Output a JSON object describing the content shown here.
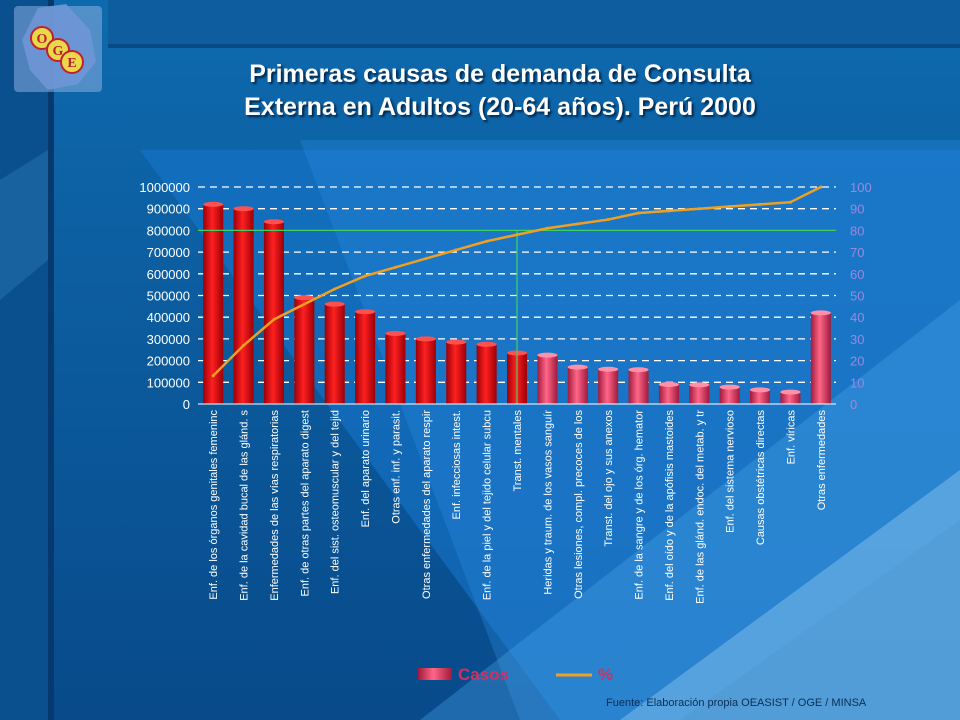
{
  "title_line1": "Primeras causas de demanda de Consulta",
  "title_line2": "Externa en Adultos (20-64 años). Perú 2000",
  "logo_letters": [
    "O",
    "G",
    "E"
  ],
  "source": "Fuente: Elaboración propia OEASIST / OGE / MINSA",
  "colors": {
    "bar_red": "#e00010",
    "bar_pink": "#e03060",
    "line": "#f0a020",
    "right_axis": "#9a88e0",
    "ref_line": "#40d060"
  },
  "chart_data": {
    "type": "bar",
    "categories": [
      "Enf. de los órganos genitales femeninc",
      "Enf. de la cavidad bucal de las glánd. s",
      "Enfermedades de las vías respiratorias",
      "Enf. de otras partes del aparato digest",
      "Enf. del sist. osteomuscular y del tejid",
      "Enf. del aparato urinario",
      "Otras enf. inf. y parasit.",
      "Otras enfermedades del aparato respir",
      "Enf. infecciosas intest.",
      "Enf. de la piel y del tejido celular subcu",
      "Transt. mentales",
      "Heridas y traum. de los vasos sanguír",
      "Otras lesiones, compl. precoces de los",
      "Transt. del ojo y sus anexos",
      "Enf. de la sangre y de los órg. hemator",
      "Enf. del oído y de la apófisis mastoides",
      "Enf. de las glánd. endoc. del metab. y tr",
      "Enf. del sistema nervioso",
      "Causas obstétricas directas",
      "Enf. víricas",
      "Otras enfermedades"
    ],
    "series": [
      {
        "name": "Casos",
        "type": "bar",
        "values": [
          920000,
          900000,
          840000,
          490000,
          460000,
          425000,
          325000,
          300000,
          285000,
          275000,
          235000,
          225000,
          170000,
          160000,
          158000,
          90000,
          88000,
          78000,
          65000,
          55000,
          420000
        ]
      },
      {
        "name": "%",
        "type": "line",
        "axis": "right",
        "values": [
          13,
          27,
          39,
          46,
          53,
          59,
          63,
          67,
          71,
          75,
          78,
          81,
          83,
          85,
          88,
          89,
          90,
          91,
          92,
          93,
          100
        ]
      }
    ],
    "y_left": {
      "min": 0,
      "max": 1000000,
      "ticks": [
        "0",
        "100000",
        "200000",
        "300000",
        "400000",
        "500000",
        "600000",
        "700000",
        "800000",
        "900000",
        "1000000"
      ]
    },
    "y_right": {
      "min": 0,
      "max": 100,
      "ticks": [
        "0",
        "10",
        "20",
        "30",
        "40",
        "50",
        "60",
        "70",
        "80",
        "90",
        "100"
      ]
    },
    "reference": {
      "y_right": 80,
      "category_index": 10
    },
    "legend": {
      "items": [
        "Casos",
        "%"
      ],
      "position": "bottom"
    }
  }
}
